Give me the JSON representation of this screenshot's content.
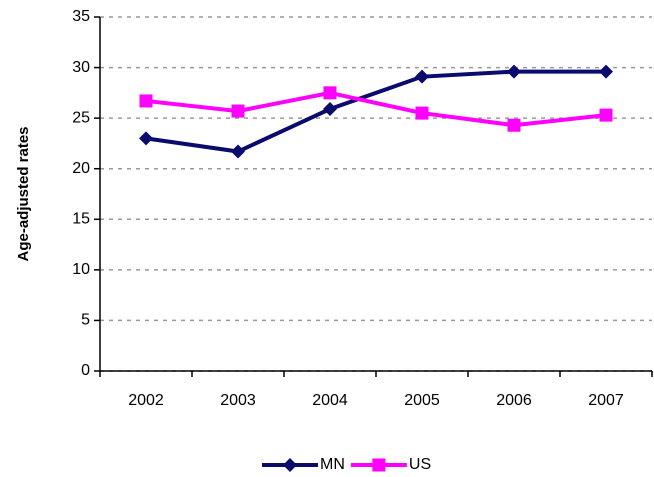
{
  "chart_data": {
    "type": "line",
    "y_label": "Age-adjusted rates",
    "categories": [
      "2002",
      "2003",
      "2004",
      "2005",
      "2006",
      "2007"
    ],
    "series": [
      {
        "name": "MN",
        "color": "#0b0b6e",
        "marker": "diamond",
        "values": [
          23.0,
          21.7,
          25.9,
          29.1,
          29.6,
          29.6
        ]
      },
      {
        "name": "US",
        "color": "#ff00ff",
        "marker": "square",
        "values": [
          26.7,
          25.7,
          27.5,
          25.5,
          24.3,
          25.3
        ]
      }
    ],
    "ylim": [
      0,
      35
    ],
    "yticks": [
      0,
      5,
      10,
      15,
      20,
      25,
      30,
      35
    ],
    "grid": true,
    "legend": "bottom"
  }
}
